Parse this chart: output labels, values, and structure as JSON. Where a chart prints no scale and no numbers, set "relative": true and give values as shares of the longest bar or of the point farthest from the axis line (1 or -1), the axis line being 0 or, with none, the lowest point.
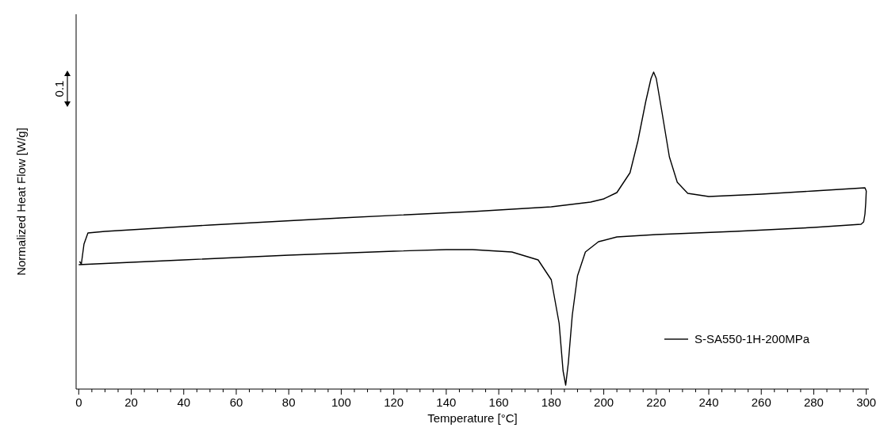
{
  "chart_data": {
    "type": "line",
    "relative": true,
    "xlabel": "Temperature [°C]",
    "ylabel": "Normalized Heat Flow [W/g]",
    "xlim": [
      -1,
      301
    ],
    "xticks": [
      0,
      {
        "value": 5,
        "label": null
      },
      {
        "value": 10,
        "label": null
      },
      {
        "value": 15,
        "label": null
      },
      20,
      {
        "value": 25,
        "label": null
      },
      {
        "value": 30,
        "label": null
      },
      {
        "value": 35,
        "label": null
      },
      40,
      {
        "value": 45,
        "label": null
      },
      {
        "value": 50,
        "label": null
      },
      {
        "value": 55,
        "label": null
      },
      60,
      {
        "value": 65,
        "label": null
      },
      {
        "value": 70,
        "label": null
      },
      {
        "value": 75,
        "label": null
      },
      80,
      {
        "value": 85,
        "label": null
      },
      {
        "value": 90,
        "label": null
      },
      {
        "value": 95,
        "label": null
      },
      100,
      {
        "value": 105,
        "label": null
      },
      {
        "value": 110,
        "label": null
      },
      {
        "value": 115,
        "label": null
      },
      120,
      {
        "value": 125,
        "label": null
      },
      {
        "value": 130,
        "label": null
      },
      {
        "value": 135,
        "label": null
      },
      140,
      {
        "value": 145,
        "label": null
      },
      {
        "value": 150,
        "label": null
      },
      {
        "value": 155,
        "label": null
      },
      160,
      {
        "value": 165,
        "label": null
      },
      {
        "value": 170,
        "label": null
      },
      {
        "value": 175,
        "label": null
      },
      180,
      {
        "value": 185,
        "label": null
      },
      {
        "value": 190,
        "label": null
      },
      {
        "value": 195,
        "label": null
      },
      200,
      {
        "value": 205,
        "label": null
      },
      {
        "value": 210,
        "label": null
      },
      {
        "value": 215,
        "label": null
      },
      220,
      {
        "value": 225,
        "label": null
      },
      {
        "value": 230,
        "label": null
      },
      {
        "value": 235,
        "label": null
      },
      240,
      {
        "value": 245,
        "label": null
      },
      {
        "value": 250,
        "label": null
      },
      {
        "value": 255,
        "label": null
      },
      260,
      {
        "value": 265,
        "label": null
      },
      {
        "value": 270,
        "label": null
      },
      {
        "value": 275,
        "label": null
      },
      280,
      {
        "value": 285,
        "label": null
      },
      {
        "value": 290,
        "label": null
      },
      {
        "value": 295,
        "label": null
      },
      300
    ],
    "annotations": [
      "0.1"
    ],
    "legend": "bottom right",
    "grid": false,
    "line_style": "solid",
    "series": [
      {
        "name": "S-SA550-1H-200MPa",
        "color": "#000000",
        "x": [
          0.3,
          1,
          2,
          3.5,
          10,
          50,
          100,
          150,
          180,
          195,
          200,
          205,
          210,
          213,
          216,
          218,
          219,
          220,
          222,
          225,
          228,
          232,
          240,
          260,
          280,
          299.5,
          300,
          299.8,
          299.5,
          299,
          298,
          280,
          250,
          220,
          205,
          198,
          193,
          190,
          188,
          186.5,
          185.5,
          184.5,
          183,
          180,
          175,
          165,
          150,
          140,
          120,
          80,
          40,
          0
        ],
        "values": [
          0.4025,
          0.395,
          0.4575,
          0.4925,
          0.4975,
          0.5175,
          0.54,
          0.56,
          0.575,
          0.59,
          0.6,
          0.62,
          0.6825,
          0.7825,
          0.9075,
          0.98,
          1,
          0.98,
          0.8825,
          0.7325,
          0.6525,
          0.6175,
          0.6075,
          0.615,
          0.625,
          0.635,
          0.625,
          0.5875,
          0.5525,
          0.5275,
          0.52,
          0.51,
          0.4975,
          0.4875,
          0.48,
          0.465,
          0.4325,
          0.3575,
          0.2325,
          0.0825,
          0.0125,
          0.0575,
          0.2075,
          0.345,
          0.4075,
          0.4325,
          0.44,
          0.44,
          0.435,
          0.4225,
          0.4075,
          0.3925
        ]
      }
    ]
  }
}
